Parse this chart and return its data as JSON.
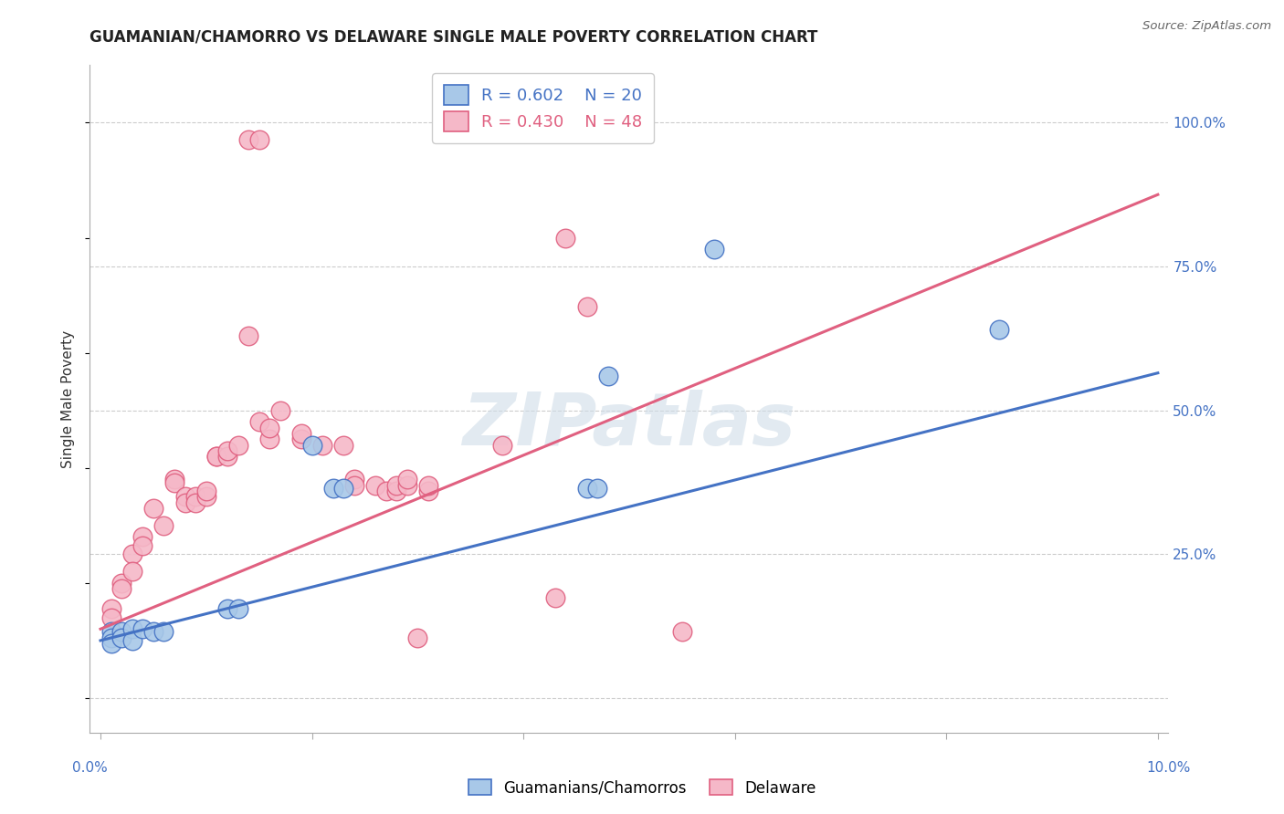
{
  "title": "GUAMANIAN/CHAMORRO VS DELAWARE SINGLE MALE POVERTY CORRELATION CHART",
  "source": "Source: ZipAtlas.com",
  "ylabel": "Single Male Poverty",
  "right_yticks": [
    "100.0%",
    "75.0%",
    "50.0%",
    "25.0%"
  ],
  "right_ytick_vals": [
    1.0,
    0.75,
    0.5,
    0.25
  ],
  "blue_color": "#a8c8e8",
  "pink_color": "#f5b8c8",
  "blue_line_color": "#4472c4",
  "pink_line_color": "#e06080",
  "watermark": "ZIPatlas",
  "blue_scatter": [
    [
      0.001,
      0.115
    ],
    [
      0.001,
      0.105
    ],
    [
      0.001,
      0.095
    ],
    [
      0.002,
      0.115
    ],
    [
      0.002,
      0.105
    ],
    [
      0.003,
      0.12
    ],
    [
      0.003,
      0.1
    ],
    [
      0.004,
      0.12
    ],
    [
      0.005,
      0.115
    ],
    [
      0.006,
      0.115
    ],
    [
      0.012,
      0.155
    ],
    [
      0.013,
      0.155
    ],
    [
      0.02,
      0.44
    ],
    [
      0.022,
      0.365
    ],
    [
      0.023,
      0.365
    ],
    [
      0.046,
      0.365
    ],
    [
      0.047,
      0.365
    ],
    [
      0.048,
      0.56
    ],
    [
      0.058,
      0.78
    ],
    [
      0.085,
      0.64
    ]
  ],
  "pink_scatter": [
    [
      0.001,
      0.155
    ],
    [
      0.001,
      0.14
    ],
    [
      0.002,
      0.2
    ],
    [
      0.002,
      0.19
    ],
    [
      0.003,
      0.25
    ],
    [
      0.003,
      0.22
    ],
    [
      0.004,
      0.28
    ],
    [
      0.004,
      0.265
    ],
    [
      0.005,
      0.33
    ],
    [
      0.006,
      0.3
    ],
    [
      0.007,
      0.38
    ],
    [
      0.007,
      0.375
    ],
    [
      0.008,
      0.35
    ],
    [
      0.008,
      0.34
    ],
    [
      0.009,
      0.35
    ],
    [
      0.009,
      0.34
    ],
    [
      0.01,
      0.35
    ],
    [
      0.01,
      0.36
    ],
    [
      0.011,
      0.42
    ],
    [
      0.011,
      0.42
    ],
    [
      0.012,
      0.42
    ],
    [
      0.012,
      0.43
    ],
    [
      0.013,
      0.44
    ],
    [
      0.015,
      0.48
    ],
    [
      0.016,
      0.45
    ],
    [
      0.016,
      0.47
    ],
    [
      0.017,
      0.5
    ],
    [
      0.019,
      0.45
    ],
    [
      0.019,
      0.46
    ],
    [
      0.021,
      0.44
    ],
    [
      0.023,
      0.44
    ],
    [
      0.024,
      0.38
    ],
    [
      0.024,
      0.37
    ],
    [
      0.026,
      0.37
    ],
    [
      0.027,
      0.36
    ],
    [
      0.028,
      0.36
    ],
    [
      0.028,
      0.37
    ],
    [
      0.029,
      0.37
    ],
    [
      0.029,
      0.38
    ],
    [
      0.031,
      0.36
    ],
    [
      0.031,
      0.37
    ],
    [
      0.038,
      0.44
    ],
    [
      0.044,
      0.8
    ],
    [
      0.046,
      0.68
    ],
    [
      0.03,
      0.105
    ],
    [
      0.043,
      0.175
    ],
    [
      0.055,
      0.115
    ],
    [
      0.014,
      0.97
    ],
    [
      0.015,
      0.97
    ],
    [
      0.014,
      0.63
    ]
  ],
  "blue_line_x": [
    0.0,
    0.1
  ],
  "blue_line_y": [
    0.1,
    0.565
  ],
  "pink_line_x": [
    0.0,
    0.1
  ],
  "pink_line_y": [
    0.12,
    0.875
  ],
  "xlim": [
    -0.001,
    0.101
  ],
  "ylim": [
    -0.06,
    1.1
  ],
  "xticks": [
    0.0,
    0.02,
    0.04,
    0.06,
    0.08,
    0.1
  ],
  "ytick_grid": [
    0.0,
    0.25,
    0.5,
    0.75,
    1.0
  ]
}
